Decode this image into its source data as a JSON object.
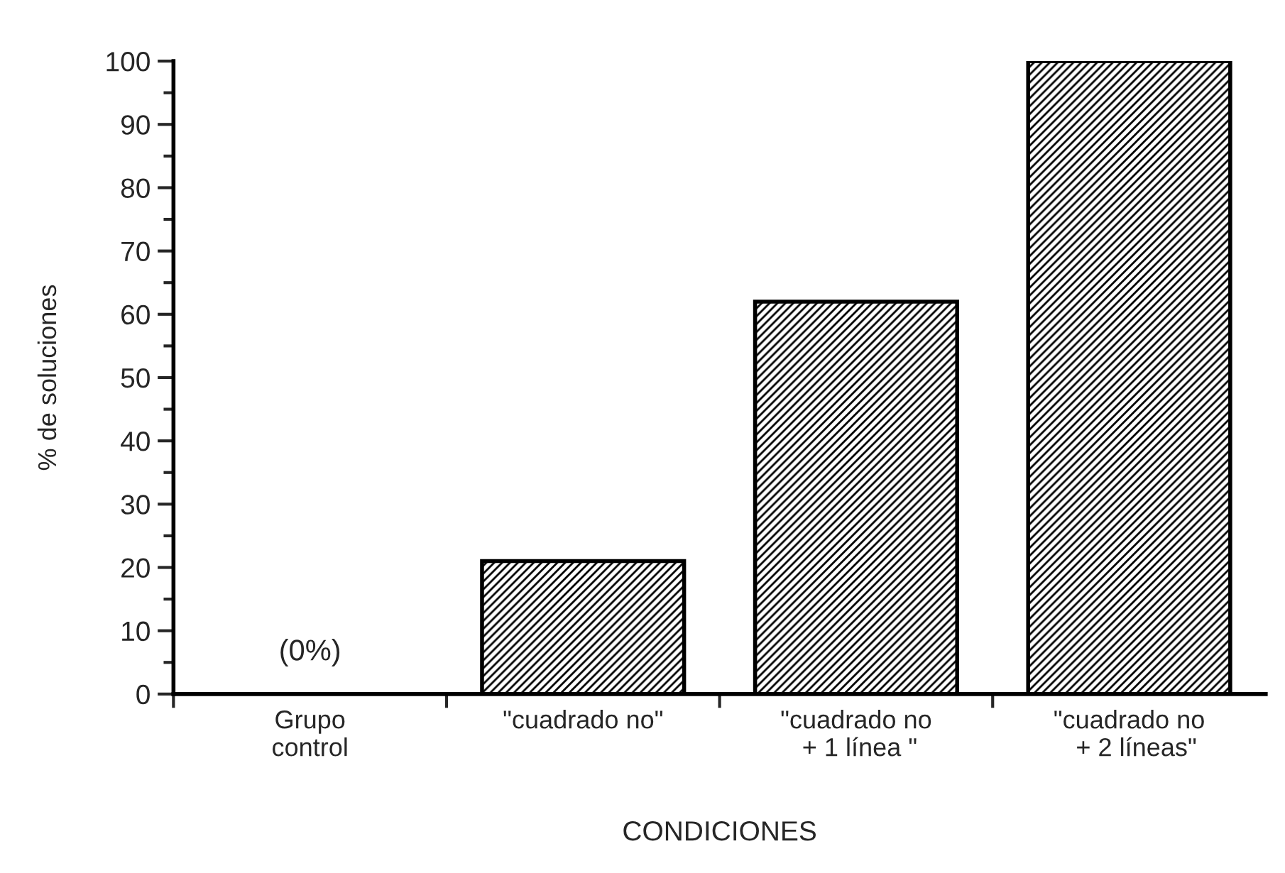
{
  "chart_data": {
    "type": "bar",
    "xlabel": "CONDICIONES",
    "ylabel": "% de soluciones",
    "categories": [
      "Grupo\ncontrol",
      "\"cuadrado no\"",
      "\"cuadrado no\n + 1 línea \"",
      "\"cuadrado no\n  + 2 líneas\""
    ],
    "values": [
      0,
      21,
      62,
      100
    ],
    "color": "#000000",
    "ylim": [
      0,
      100
    ],
    "yticks": [
      0,
      10,
      20,
      30,
      40,
      50,
      60,
      70,
      80,
      90,
      100
    ],
    "grid": false,
    "annotations": [
      {
        "text": "(0%)",
        "x": "Grupo\ncontrol",
        "y": 0
      }
    ]
  }
}
